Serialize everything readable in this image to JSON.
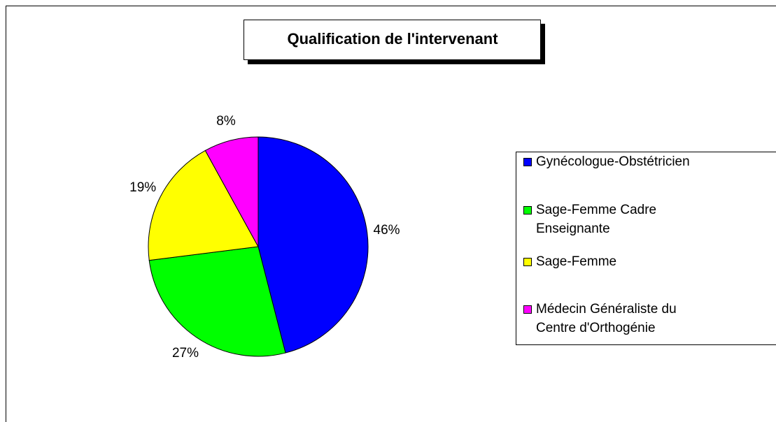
{
  "chart_data": {
    "type": "pie",
    "title": "Qualification de l'intervenant",
    "categories": [
      "Gynécologue-Obstétricien",
      "Sage-Femme Cadre Enseignante",
      "Sage-Femme",
      "Médecin Généraliste du Centre d'Orthogénie"
    ],
    "values": [
      46,
      27,
      19,
      8
    ],
    "value_labels": [
      "46%",
      "27%",
      "19%",
      "8%"
    ],
    "colors": [
      "#0000ff",
      "#00ff00",
      "#ffff00",
      "#ff00ff"
    ],
    "legend": "right"
  }
}
